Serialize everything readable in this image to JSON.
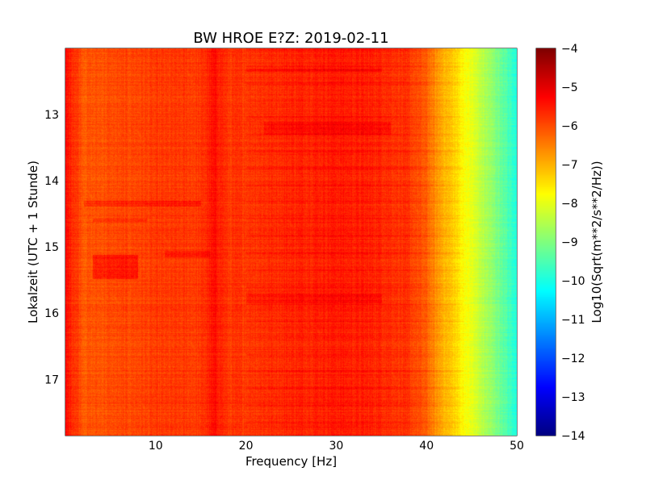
{
  "chart_data": {
    "type": "heatmap",
    "title": "BW HROE E?Z: 2019-02-11",
    "xlabel": "Frequency [Hz]",
    "ylabel": "Lokalzeit (UTC + 1 Stunde)",
    "xlim": [
      0,
      50
    ],
    "ylim": [
      17.85,
      12.0
    ],
    "x_ticks": [
      10,
      20,
      30,
      40,
      50
    ],
    "y_ticks": [
      13,
      14,
      15,
      16,
      17
    ],
    "grid": true,
    "colormap": "jet",
    "colorbar": {
      "label": "Log10(Sqrt(m**2/s**2/Hz))",
      "range": [
        -14,
        -4
      ],
      "ticks": [
        -4,
        -5,
        -6,
        -7,
        -8,
        -9,
        -10,
        -11,
        -12,
        -13,
        -14
      ]
    },
    "spectrum_profile": {
      "frequency_hz": [
        0,
        1,
        2,
        5,
        10,
        15,
        16.5,
        17,
        18,
        20,
        25,
        30,
        35,
        38,
        40,
        41,
        42,
        43,
        44,
        45,
        46,
        48,
        50
      ],
      "log10_amplitude": [
        -5.4,
        -5.7,
        -6.1,
        -6.0,
        -5.85,
        -5.8,
        -5.4,
        -5.5,
        -5.8,
        -5.75,
        -5.6,
        -5.5,
        -5.6,
        -5.8,
        -6.2,
        -6.7,
        -7.0,
        -7.3,
        -7.7,
        -8.0,
        -8.4,
        -9.1,
        -10.0
      ]
    },
    "noise_bands": [
      {
        "time_start": 15.12,
        "time_end": 15.48,
        "freq_start": 3.0,
        "freq_end": 8.0,
        "offset": 0.5
      },
      {
        "time_start": 14.3,
        "time_end": 14.38,
        "freq_start": 2.0,
        "freq_end": 15.0,
        "offset": 0.4
      },
      {
        "time_start": 14.56,
        "time_end": 14.62,
        "freq_start": 3.0,
        "freq_end": 9.0,
        "offset": 0.3
      },
      {
        "time_start": 15.05,
        "time_end": 15.15,
        "freq_start": 11.0,
        "freq_end": 16.0,
        "offset": 0.3
      },
      {
        "time_start": 13.1,
        "time_end": 13.3,
        "freq_start": 22.0,
        "freq_end": 36.0,
        "offset": 0.25
      },
      {
        "time_start": 15.7,
        "time_end": 15.85,
        "freq_start": 20.0,
        "freq_end": 35.0,
        "offset": 0.25
      },
      {
        "time_start": 12.3,
        "time_end": 12.35,
        "freq_start": 20.0,
        "freq_end": 35.0,
        "offset": 0.3
      }
    ]
  }
}
